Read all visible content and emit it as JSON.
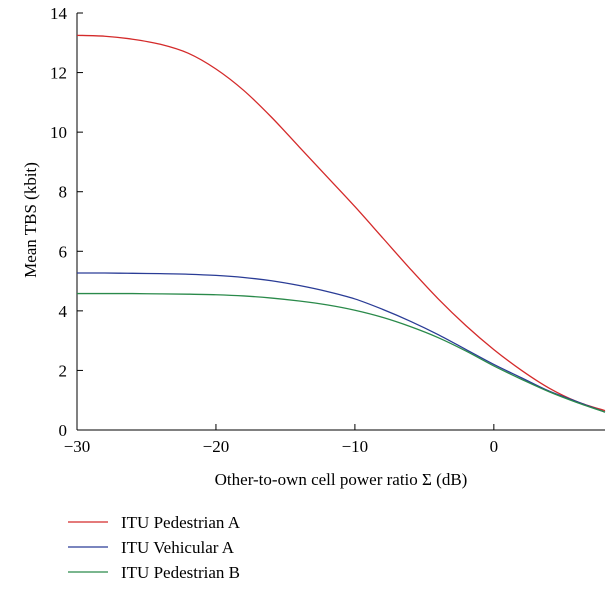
{
  "chart_data": {
    "type": "line",
    "title": "",
    "xlabel": "Other-to-own cell power ratio Σ (dB)",
    "ylabel": "Mean TBS (kbit)",
    "xlim": [
      -30,
      8
    ],
    "ylim": [
      0,
      14
    ],
    "x_ticks": [
      -30,
      -20,
      -10,
      0
    ],
    "x_tick_labels": [
      "−30",
      "−20",
      "−10",
      "0"
    ],
    "y_ticks": [
      0,
      2,
      4,
      6,
      8,
      10,
      12,
      14
    ],
    "y_tick_labels": [
      "0",
      "2",
      "4",
      "6",
      "8",
      "10",
      "12",
      "14"
    ],
    "grid": false,
    "legend_position": "bottom-left, below plot",
    "series": [
      {
        "name": "ITU Pedestrian A",
        "color": "#d42a2a",
        "x": [
          -30,
          -28,
          -26,
          -24,
          -22,
          -20,
          -18,
          -16,
          -14,
          -12,
          -10,
          -8,
          -6,
          -4,
          -2,
          0,
          2,
          4,
          6,
          8
        ],
        "y": [
          13.25,
          13.22,
          13.12,
          12.95,
          12.65,
          12.12,
          11.4,
          10.5,
          9.5,
          8.5,
          7.5,
          6.45,
          5.4,
          4.4,
          3.5,
          2.7,
          2.0,
          1.4,
          0.95,
          0.65
        ]
      },
      {
        "name": "ITU Vehicular A",
        "color": "#2a3c96",
        "x": [
          -30,
          -28,
          -26,
          -24,
          -22,
          -20,
          -18,
          -16,
          -14,
          -12,
          -10,
          -8,
          -6,
          -4,
          -2,
          0,
          2,
          4,
          6,
          8
        ],
        "y": [
          5.27,
          5.27,
          5.26,
          5.25,
          5.23,
          5.19,
          5.12,
          5.01,
          4.85,
          4.65,
          4.4,
          4.05,
          3.65,
          3.2,
          2.7,
          2.2,
          1.75,
          1.3,
          0.95,
          0.6
        ]
      },
      {
        "name": "ITU Pedestrian B",
        "color": "#2a8a4a",
        "x": [
          -30,
          -28,
          -26,
          -24,
          -22,
          -20,
          -18,
          -16,
          -14,
          -12,
          -10,
          -8,
          -6,
          -4,
          -2,
          0,
          2,
          4,
          6,
          8
        ],
        "y": [
          4.58,
          4.58,
          4.58,
          4.57,
          4.56,
          4.54,
          4.5,
          4.43,
          4.33,
          4.2,
          4.02,
          3.78,
          3.47,
          3.1,
          2.65,
          2.15,
          1.7,
          1.28,
          0.92,
          0.6
        ]
      }
    ]
  }
}
